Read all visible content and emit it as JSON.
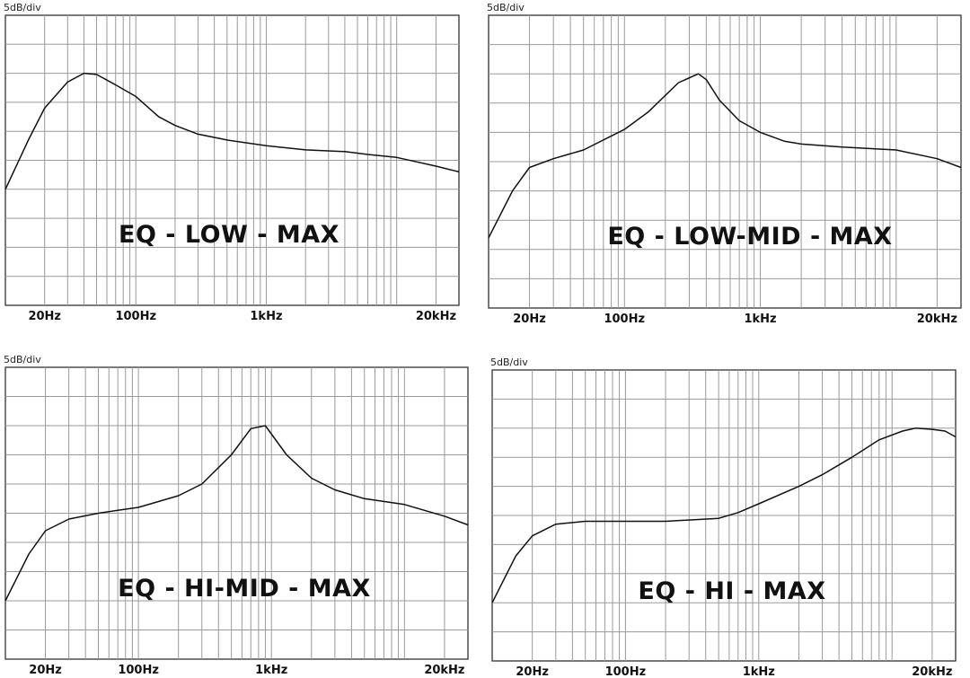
{
  "chart_data": [
    {
      "type": "line",
      "title": "EQ - LOW - MAX",
      "unit_label": "5dB/div",
      "x_scale": "log",
      "xlim": [
        10,
        30000
      ],
      "ylim": [
        -30,
        20
      ],
      "grid": true,
      "x_ticks": [
        20,
        100,
        1000,
        20000
      ],
      "x_tick_labels": [
        "20Hz",
        "100Hz",
        "1kHz",
        "20kHz"
      ],
      "series": [
        {
          "x": [
            10,
            15,
            20,
            30,
            40,
            50,
            70,
            100,
            150,
            200,
            300,
            500,
            1000,
            2000,
            4000,
            6000,
            10000,
            20000,
            30000
          ],
          "y": [
            -10,
            -1.5,
            4,
            8.5,
            10,
            9.8,
            8,
            6,
            2.5,
            1,
            -0.5,
            -1.5,
            -2.5,
            -3.2,
            -3.5,
            -4,
            -4.5,
            -6,
            -7
          ]
        }
      ]
    },
    {
      "type": "line",
      "title": "EQ - LOW-MID - MAX",
      "unit_label": "5dB/div",
      "x_scale": "log",
      "xlim": [
        10,
        30000
      ],
      "ylim": [
        -30,
        20
      ],
      "grid": true,
      "x_ticks": [
        20,
        100,
        1000,
        20000
      ],
      "x_tick_labels": [
        "20Hz",
        "100Hz",
        "1kHz",
        "20kHz"
      ],
      "series": [
        {
          "x": [
            10,
            15,
            20,
            30,
            50,
            100,
            150,
            250,
            350,
            400,
            500,
            700,
            1000,
            1500,
            2000,
            4000,
            10000,
            20000,
            30000
          ],
          "y": [
            -18,
            -10,
            -6,
            -4.5,
            -3,
            0.5,
            3.5,
            8.5,
            10,
            9,
            5.5,
            2,
            0,
            -1.5,
            -2,
            -2.5,
            -3,
            -4.5,
            -6
          ]
        }
      ]
    },
    {
      "type": "line",
      "title": "EQ - HI-MID - MAX",
      "unit_label": "5dB/div",
      "x_scale": "log",
      "xlim": [
        10,
        30000
      ],
      "ylim": [
        -30,
        20
      ],
      "grid": true,
      "x_ticks": [
        20,
        100,
        1000,
        20000
      ],
      "x_tick_labels": [
        "20Hz",
        "100Hz",
        "1kHz",
        "20kHz"
      ],
      "series": [
        {
          "x": [
            10,
            15,
            20,
            30,
            50,
            70,
            100,
            200,
            300,
            500,
            700,
            900,
            1300,
            2000,
            3000,
            5000,
            10000,
            20000,
            30000
          ],
          "y": [
            -20,
            -12,
            -8,
            -6,
            -5,
            -4.5,
            -4,
            -2,
            0,
            5,
            9.5,
            10,
            5,
            1,
            -1,
            -2.5,
            -3.5,
            -5.5,
            -7
          ]
        }
      ]
    },
    {
      "type": "line",
      "title": "EQ - HI - MAX",
      "unit_label": "5dB/div",
      "x_scale": "log",
      "xlim": [
        10,
        30000
      ],
      "ylim": [
        -30,
        20
      ],
      "grid": true,
      "x_ticks": [
        20,
        100,
        1000,
        20000
      ],
      "x_tick_labels": [
        "20Hz",
        "100Hz",
        "1kHz",
        "20kHz"
      ],
      "series": [
        {
          "x": [
            10,
            15,
            20,
            30,
            50,
            100,
            200,
            500,
            700,
            1000,
            2000,
            3000,
            5000,
            8000,
            12000,
            15000,
            20000,
            25000,
            30000
          ],
          "y": [
            -20,
            -12,
            -8.5,
            -6.5,
            -6,
            -6,
            -6,
            -5.5,
            -4.5,
            -3,
            0,
            2,
            5,
            8,
            9.5,
            10,
            9.8,
            9.5,
            8.5
          ]
        }
      ]
    }
  ]
}
